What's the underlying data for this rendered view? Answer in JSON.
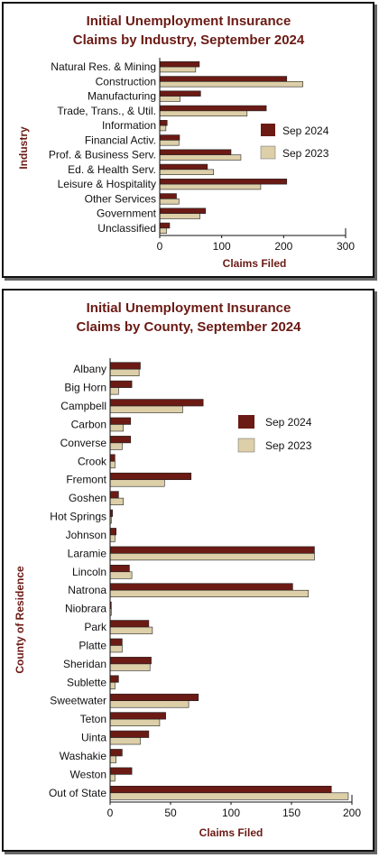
{
  "colors": {
    "sep2024": "#6B1A14",
    "sep2023": "#DDCFA8",
    "title": "#6B1A14",
    "text": "#111111"
  },
  "chart_data": [
    {
      "type": "bar",
      "orientation": "horizontal",
      "title_line1": "Initial Unemployment Insurance",
      "title_line2": "Claims by Industry, September 2024",
      "xlabel": "Claims Filed",
      "ylabel": "Industry",
      "xlim": [
        0,
        300
      ],
      "xticks": [
        "0",
        "100",
        "200",
        "300"
      ],
      "legend_position": "right",
      "categories": [
        "Natural Res. & Mining",
        "Construction",
        "Manufacturing",
        "Trade, Trans., & Util.",
        "Information",
        "Financial Activ.",
        "Prof. & Business Serv.",
        "Ed. & Health Serv.",
        "Leisure & Hospitality",
        "Other Services",
        "Government",
        "Unclassified"
      ],
      "series": [
        {
          "name": "Sep 2024",
          "values": [
            64,
            205,
            66,
            172,
            12,
            32,
            115,
            77,
            205,
            27,
            74,
            16
          ]
        },
        {
          "name": "Sep 2023",
          "values": [
            58,
            231,
            33,
            141,
            10,
            31,
            131,
            87,
            163,
            31,
            65,
            11
          ]
        }
      ]
    },
    {
      "type": "bar",
      "orientation": "horizontal",
      "title_line1": "Initial Unemployment Insurance",
      "title_line2": "Claims by County, September 2024",
      "xlabel": "Claims Filed",
      "ylabel": "County of Residence",
      "xlim": [
        0,
        200
      ],
      "xticks": [
        "0",
        "50",
        "100",
        "150",
        "200"
      ],
      "legend_position": "right",
      "categories": [
        "Albany",
        "Big Horn",
        "Campbell",
        "Carbon",
        "Converse",
        "Crook",
        "Fremont",
        "Goshen",
        "Hot Springs",
        "Johnson",
        "Laramie",
        "Lincoln",
        "Natrona",
        "Niobrara",
        "Park",
        "Platte",
        "Sheridan",
        "Sublette",
        "Sweetwater",
        "Teton",
        "Uinta",
        "Washakie",
        "Weston",
        "Out of State"
      ],
      "series": [
        {
          "name": "Sep 2024",
          "values": [
            25,
            18,
            77,
            17,
            17,
            4,
            67,
            7,
            2,
            5,
            169,
            16,
            151,
            1,
            32,
            10,
            34,
            7,
            73,
            46,
            32,
            10,
            18,
            183
          ]
        },
        {
          "name": "Sep 2023",
          "values": [
            24,
            7,
            60,
            11,
            10,
            4,
            45,
            11,
            1,
            4,
            169,
            18,
            164,
            1,
            35,
            10,
            33,
            4,
            65,
            41,
            25,
            5,
            4,
            197
          ]
        }
      ]
    }
  ]
}
